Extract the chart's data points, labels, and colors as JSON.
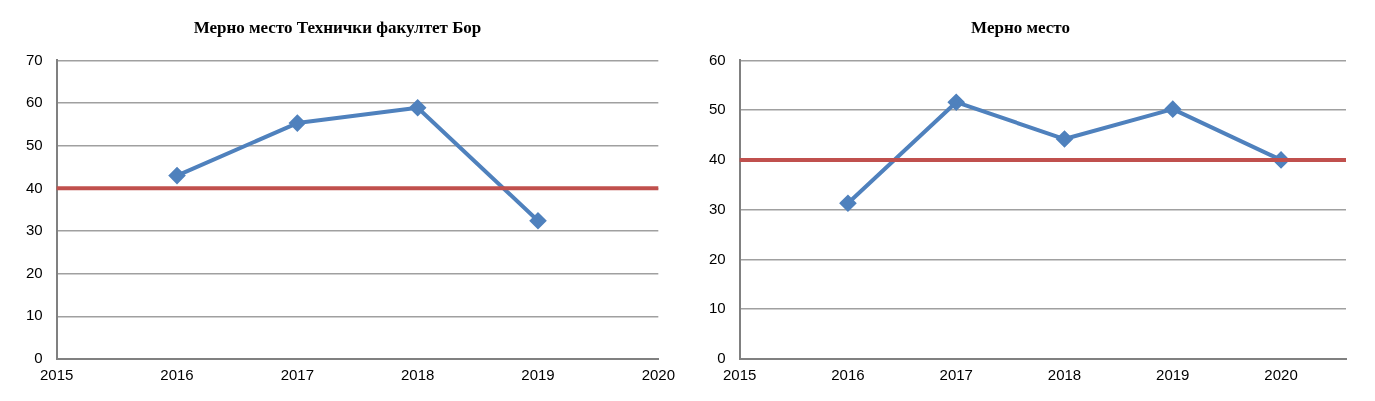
{
  "chart_data": [
    {
      "type": "line",
      "title": "Мерно место Технички факултет Бор",
      "x": [
        2016,
        2017,
        2018,
        2019
      ],
      "series": [
        {
          "color": "#4f81bd",
          "values": [
            43.0,
            55.3,
            58.9,
            32.4
          ]
        }
      ],
      "xlim": [
        2015,
        2020
      ],
      "xticks": [
        2015,
        2016,
        2017,
        2018,
        2019,
        2020
      ],
      "ylim": [
        0,
        70
      ],
      "yticks": [
        0,
        10,
        20,
        30,
        40,
        50,
        60,
        70
      ],
      "grid": "y",
      "marker": "diamond",
      "legend": false,
      "ref_lines": [
        {
          "axis": "y",
          "value": 40,
          "color": "#c0504d"
        }
      ]
    },
    {
      "type": "line",
      "title": "Мерно место",
      "x": [
        2016,
        2017,
        2018,
        2019,
        2020
      ],
      "series": [
        {
          "color": "#4f81bd",
          "values": [
            31.3,
            51.6,
            44.2,
            50.2,
            40.0
          ]
        }
      ],
      "xlim": [
        2015,
        2020.6
      ],
      "xticks": [
        2015,
        2016,
        2017,
        2018,
        2019,
        2020
      ],
      "ylim": [
        0,
        60
      ],
      "yticks": [
        0,
        10,
        20,
        30,
        40,
        50,
        60
      ],
      "grid": "y",
      "marker": "diamond",
      "legend": false,
      "ref_lines": [
        {
          "axis": "y",
          "value": 40,
          "color": "#c0504d"
        }
      ]
    }
  ]
}
